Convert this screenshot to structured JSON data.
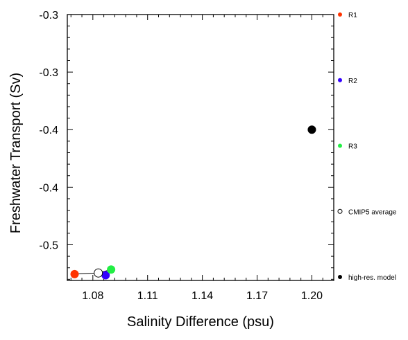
{
  "chart_data": {
    "type": "scatter",
    "title": "",
    "xlabel": "Salinity Difference (psu)",
    "ylabel": "Freshwater Transport (Sv)",
    "xlim": [
      1.066,
      1.212
    ],
    "ylim": [
      -0.531,
      -0.3
    ],
    "x_ticks": [
      1.08,
      1.11,
      1.14,
      1.17,
      1.2
    ],
    "x_tick_labels": [
      "1.08",
      "1.11",
      "1.14",
      "1.17",
      "1.20"
    ],
    "y_ticks": [
      -0.3,
      -0.35,
      -0.4,
      -0.45,
      -0.5
    ],
    "y_tick_labels": [
      "-0.3",
      "-0.3",
      "-0.4",
      "-0.4",
      "-0.5"
    ],
    "grid": false,
    "legend_position": "right",
    "series": [
      {
        "name": "R1",
        "color": "#ff3300",
        "filled": true,
        "x": [
          1.07
        ],
        "y": [
          -0.5255
        ]
      },
      {
        "name": "R2",
        "color": "#3300ff",
        "filled": true,
        "x": [
          1.087
        ],
        "y": [
          -0.5265
        ]
      },
      {
        "name": "R3",
        "color": "#22ee44",
        "filled": true,
        "x": [
          1.09
        ],
        "y": [
          -0.5215
        ]
      },
      {
        "name": "CMIP5 average",
        "color": "#000000",
        "filled": false,
        "x": [
          1.083
        ],
        "y": [
          -0.5245
        ]
      },
      {
        "name": "high-res. model",
        "color": "#000000",
        "filled": true,
        "x": [
          1.2
        ],
        "y": [
          -0.4
        ]
      }
    ],
    "connector_lines": [
      {
        "from": "R1",
        "to": "CMIP5 average"
      },
      {
        "from": "R2",
        "to": "CMIP5 average"
      },
      {
        "from": "R3",
        "to": "CMIP5 average"
      }
    ]
  }
}
